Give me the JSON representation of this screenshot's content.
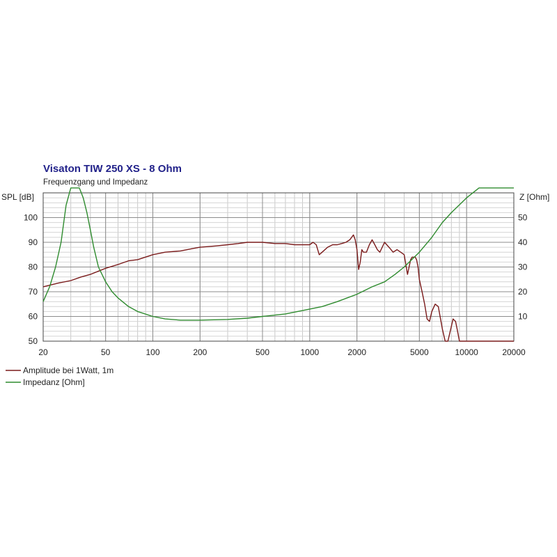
{
  "chart_data": {
    "type": "line",
    "title": "Visaton TIW 250 XS - 8 Ohm",
    "subtitle": "Frequenzgang und Impedanz",
    "x_scale": "log",
    "xlim": [
      20,
      20000
    ],
    "x_ticks": [
      20,
      50,
      100,
      200,
      500,
      1000,
      2000,
      5000,
      10000,
      20000
    ],
    "y_left": {
      "label": "SPL [dB]",
      "lim": [
        50,
        110
      ],
      "ticks": [
        50,
        60,
        70,
        80,
        90,
        100
      ]
    },
    "y_right": {
      "label": "Z [Ohm]",
      "lim": [
        0,
        60
      ],
      "ticks": [
        10,
        20,
        30,
        40,
        50
      ]
    },
    "grid": true,
    "legend_position": "bottom-left",
    "series": [
      {
        "name": "Amplitude bei 1Watt, 1m",
        "axis": "left",
        "color": "#7a1a1a",
        "x": [
          20,
          25,
          30,
          35,
          40,
          50,
          60,
          70,
          80,
          100,
          120,
          150,
          180,
          200,
          250,
          300,
          350,
          400,
          500,
          600,
          700,
          800,
          900,
          1000,
          1050,
          1100,
          1150,
          1200,
          1300,
          1400,
          1500,
          1600,
          1700,
          1800,
          1900,
          1950,
          2000,
          2050,
          2100,
          2150,
          2200,
          2300,
          2400,
          2500,
          2600,
          2700,
          2800,
          3000,
          3200,
          3400,
          3600,
          3800,
          4000,
          4200,
          4400,
          4500,
          4700,
          4800,
          4900,
          5000,
          5200,
          5400,
          5600,
          5800,
          6000,
          6300,
          6600,
          7000,
          7300,
          7600,
          8000,
          8200,
          8500,
          8700,
          9000,
          9300,
          9600,
          9800,
          10000,
          10500,
          11000,
          12000,
          15000,
          20000
        ],
        "y": [
          72,
          73.5,
          74.5,
          76,
          77,
          79.5,
          81,
          82.5,
          83,
          85,
          86,
          86.5,
          87.5,
          88,
          88.5,
          89,
          89.5,
          90,
          90,
          89.5,
          89.5,
          89,
          89,
          89,
          90,
          89,
          85,
          86,
          88,
          89,
          89,
          89.5,
          90,
          91,
          93,
          91,
          87,
          79,
          82,
          87,
          86,
          86,
          89,
          91,
          89,
          87,
          86,
          90,
          88,
          86,
          87,
          86,
          85,
          77,
          83,
          84,
          84,
          83,
          80,
          75,
          70,
          65,
          59,
          58,
          62,
          65,
          64,
          55,
          50,
          50,
          56,
          59,
          58,
          55,
          50,
          50,
          50,
          50,
          50,
          50,
          50,
          50,
          50,
          50
        ]
      },
      {
        "name": "Impedanz [Ohm]",
        "axis": "right",
        "color": "#2e8b2e",
        "x": [
          20,
          22,
          24,
          26,
          28,
          30,
          32,
          34,
          35,
          36,
          37,
          38,
          40,
          42,
          45,
          50,
          55,
          60,
          70,
          80,
          100,
          120,
          150,
          200,
          300,
          400,
          500,
          700,
          1000,
          1200,
          1500,
          2000,
          2500,
          3000,
          3500,
          4000,
          5000,
          6000,
          7000,
          8000,
          10000,
          12000,
          14000,
          16000,
          20000
        ],
        "y": [
          16,
          22,
          30,
          40,
          55,
          62,
          62,
          62,
          60,
          58,
          55,
          52,
          45,
          38,
          30,
          24,
          20,
          17.5,
          14,
          12,
          10,
          9,
          8.5,
          8.5,
          8.8,
          9.3,
          10,
          11,
          13,
          14,
          16,
          19,
          22,
          24,
          27,
          30,
          36,
          42,
          48,
          52,
          58,
          62,
          62,
          62,
          62
        ]
      }
    ]
  }
}
